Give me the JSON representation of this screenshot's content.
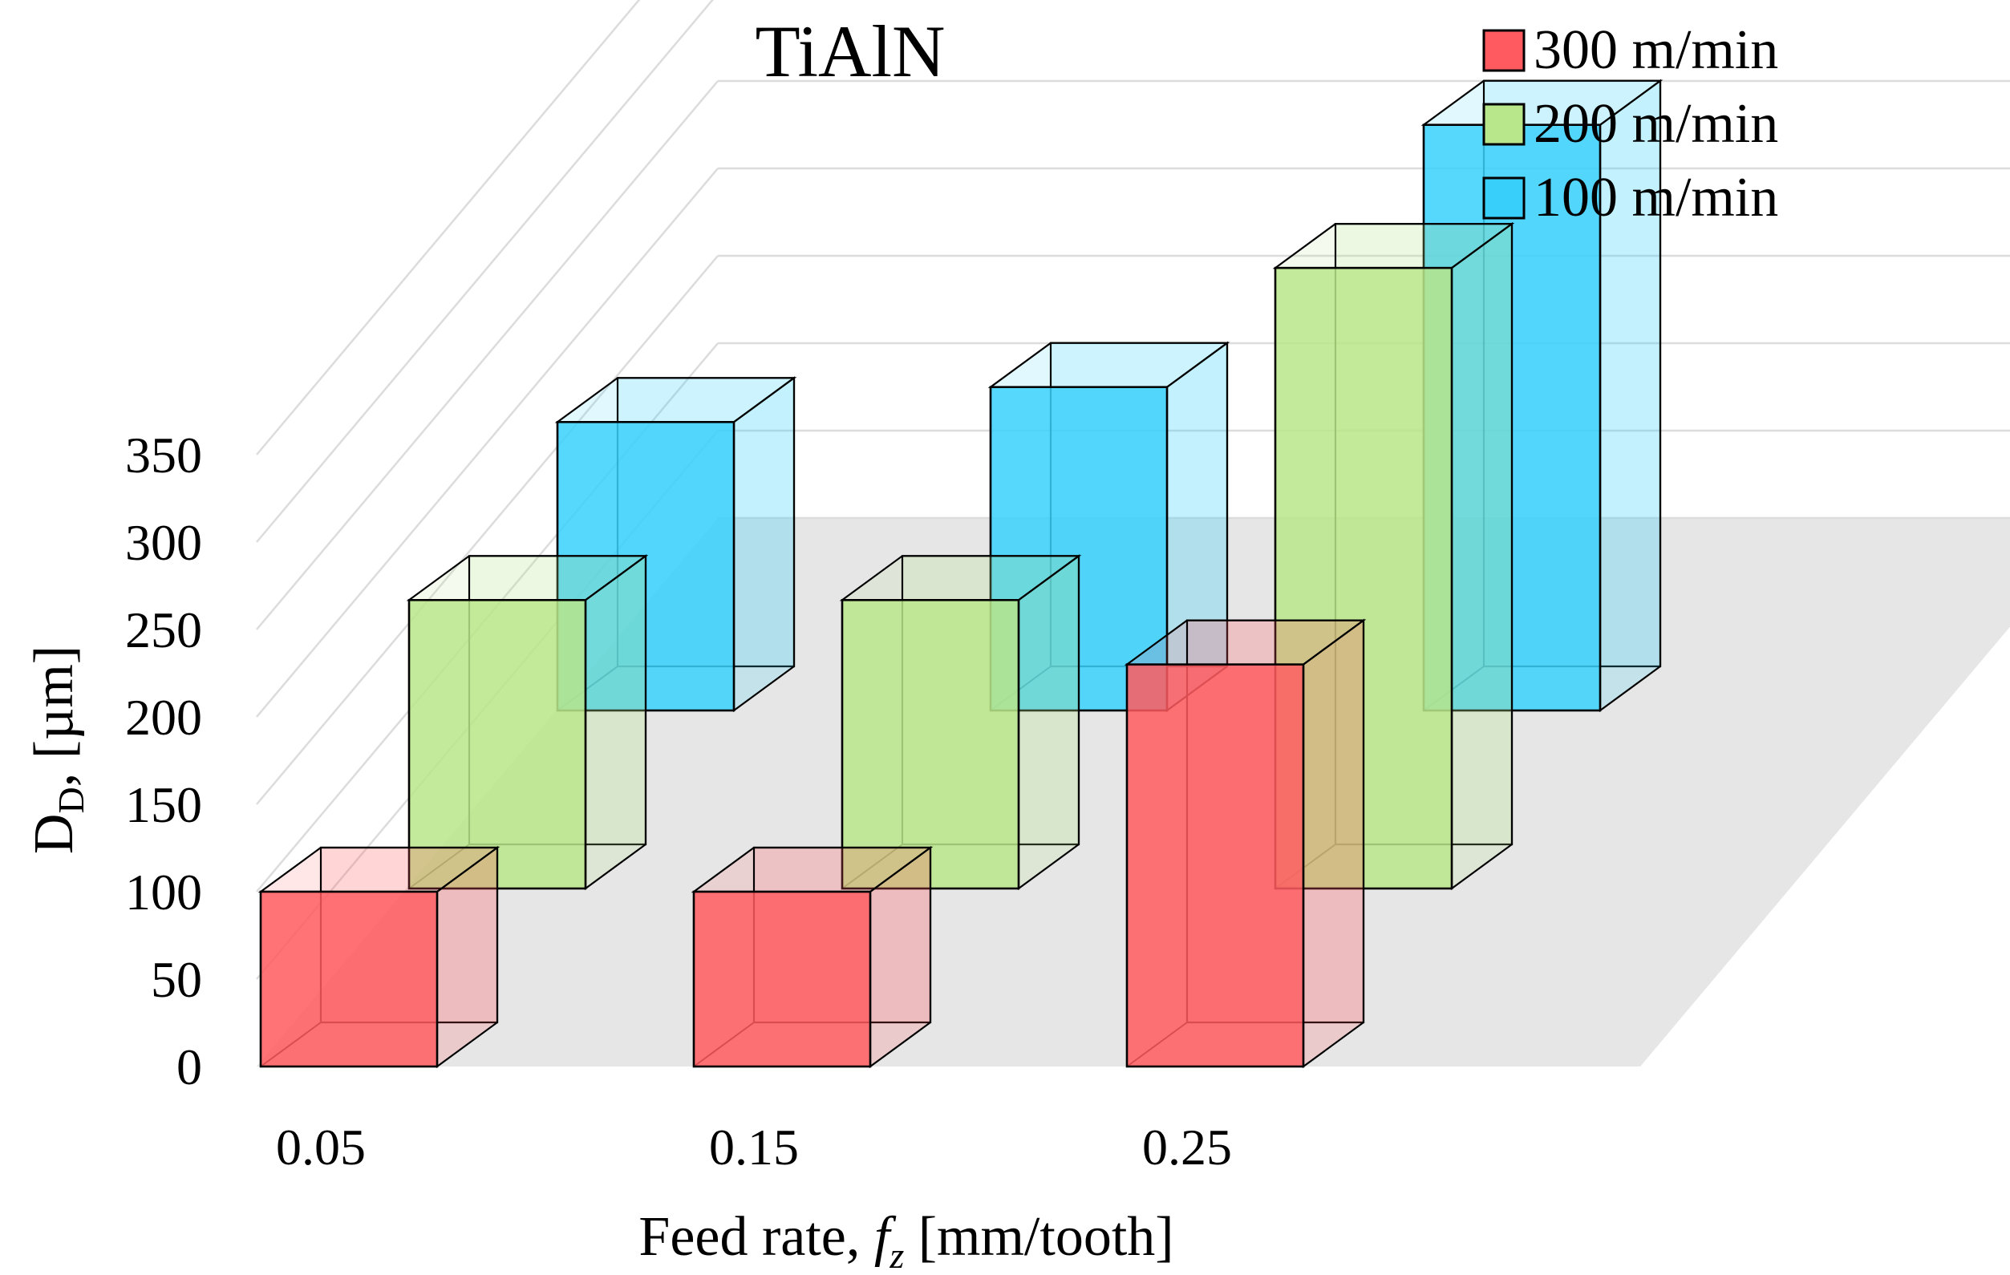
{
  "chart_data": {
    "type": "bar",
    "variant": "3d-column",
    "title": "TiAlN",
    "xlabel": {
      "main": "Feed rate, ",
      "symbol": "f",
      "subscript": "z",
      "unit": " [mm/tooth]"
    },
    "ylabel": {
      "symbol": "D",
      "subscript": "D",
      "rest": ", [µm]"
    },
    "categories": [
      "0.05",
      "0.15",
      "0.25"
    ],
    "yticks": [
      "0",
      "50",
      "100",
      "150",
      "200",
      "250",
      "300",
      "350"
    ],
    "ylim": [
      0,
      350
    ],
    "grid": true,
    "legend_position": "top-right",
    "series": [
      {
        "name": "300 m/min",
        "color": "#ff5a5f",
        "values": [
          100,
          100,
          230
        ]
      },
      {
        "name": "200 m/min",
        "color": "#b8e68a",
        "values": [
          165,
          165,
          355
        ]
      },
      {
        "name": "100 m/min",
        "color": "#38d0fb",
        "values": [
          165,
          185,
          335
        ]
      }
    ]
  }
}
